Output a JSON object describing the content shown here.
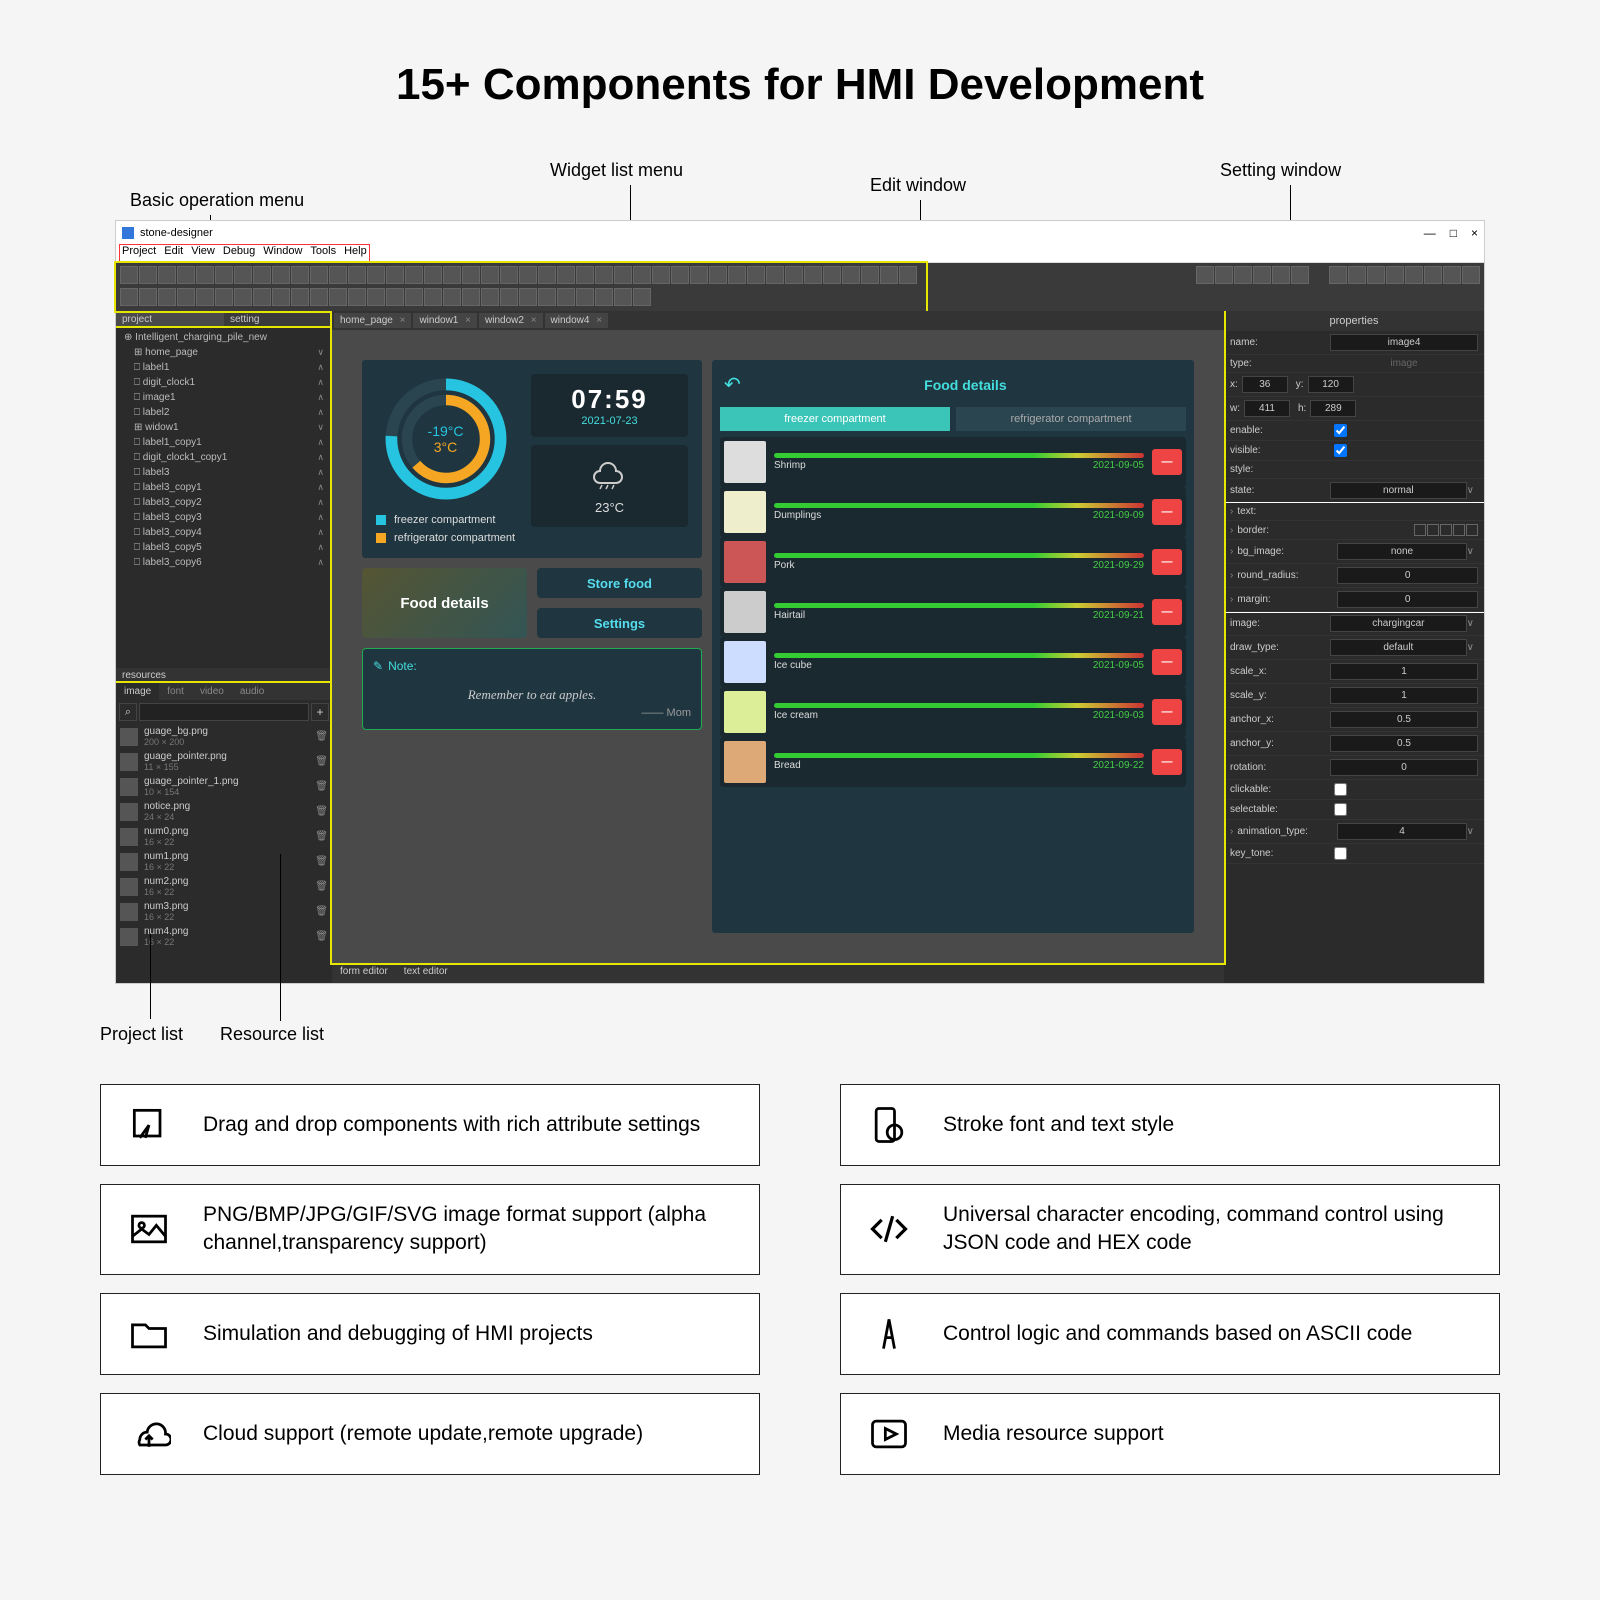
{
  "page_title": "15+ Components for HMI Development",
  "annotations": {
    "basic_menu": "Basic operation menu",
    "widget_menu": "Widget list menu",
    "edit_window": "Edit window",
    "setting_window": "Setting window",
    "project_list": "Project list",
    "resource_list": "Resource list"
  },
  "app": {
    "title": "stone-designer",
    "menus": [
      "Project",
      "Edit",
      "View",
      "Debug",
      "Window",
      "Tools",
      "Help"
    ],
    "project_tabs": {
      "a": "project",
      "b": "setting"
    },
    "project_root": "Intelligent_charging_pile_new",
    "tree": [
      {
        "name": "home_page",
        "kind": "win"
      },
      {
        "name": "label1",
        "kind": "item"
      },
      {
        "name": "digit_clock1",
        "kind": "item"
      },
      {
        "name": "image1",
        "kind": "item"
      },
      {
        "name": "label2",
        "kind": "item"
      },
      {
        "name": "widow1",
        "kind": "win"
      },
      {
        "name": "label1_copy1",
        "kind": "item"
      },
      {
        "name": "digit_clock1_copy1",
        "kind": "item"
      },
      {
        "name": "label3",
        "kind": "item"
      },
      {
        "name": "label3_copy1",
        "kind": "item"
      },
      {
        "name": "label3_copy2",
        "kind": "item"
      },
      {
        "name": "label3_copy3",
        "kind": "item"
      },
      {
        "name": "label3_copy4",
        "kind": "item"
      },
      {
        "name": "label3_copy5",
        "kind": "item"
      },
      {
        "name": "label3_copy6",
        "kind": "item"
      }
    ],
    "res_label": "resources",
    "res_tabs": [
      "image",
      "font",
      "video",
      "audio"
    ],
    "resources": [
      {
        "name": "guage_bg.png",
        "dim": "200 × 200"
      },
      {
        "name": "guage_pointer.png",
        "dim": "11 × 155"
      },
      {
        "name": "guage_pointer_1.png",
        "dim": "10 × 154"
      },
      {
        "name": "notice.png",
        "dim": "24 × 24"
      },
      {
        "name": "num0.png",
        "dim": "16 × 22"
      },
      {
        "name": "num1.png",
        "dim": "16 × 22"
      },
      {
        "name": "num2.png",
        "dim": "16 × 22"
      },
      {
        "name": "num3.png",
        "dim": "16 × 22"
      },
      {
        "name": "num4.png",
        "dim": "16 × 22"
      }
    ],
    "tabs": [
      "home_page",
      "window1",
      "window2",
      "window4"
    ],
    "bottom_tabs": [
      "form editor",
      "text editor"
    ]
  },
  "hmi": {
    "temp1": "-19°C",
    "temp2": "3°C",
    "gauge_colors": {
      "outer": "#26c4e0",
      "inner": "#f5a623"
    },
    "clock_time": "07:59",
    "clock_date": "2021-07-23",
    "weather_temp": "23°C",
    "legend1": "freezer compartment",
    "legend2": "refrigerator compartment",
    "btn_food_details": "Food details",
    "btn_store_food": "Store food",
    "btn_settings": "Settings",
    "note_label": "Note:",
    "note_text": "Remember to eat apples.",
    "note_sig": "—— Mom",
    "right_title": "Food details",
    "r_tab1": "freezer compartment",
    "r_tab2": "refrigerator compartment",
    "foods": [
      {
        "name": "Shrimp",
        "date": "2021-09-05",
        "color": "#ddd"
      },
      {
        "name": "Dumplings",
        "date": "2021-09-09",
        "color": "#eec"
      },
      {
        "name": "Pork",
        "date": "2021-09-29",
        "color": "#c55"
      },
      {
        "name": "Hairtail",
        "date": "2021-09-21",
        "color": "#ccc"
      },
      {
        "name": "Ice cube",
        "date": "2021-09-05",
        "color": "#cdf"
      },
      {
        "name": "Ice cream",
        "date": "2021-09-03",
        "color": "#de9"
      },
      {
        "name": "Bread",
        "date": "2021-09-22",
        "color": "#da7"
      }
    ]
  },
  "props": {
    "header": "properties",
    "name": {
      "label": "name:",
      "val": "image4"
    },
    "type": {
      "label": "type:",
      "val": "image"
    },
    "x": {
      "label": "x:",
      "val": "36"
    },
    "y": {
      "label": "y:",
      "val": "120"
    },
    "w": {
      "label": "w:",
      "val": "411"
    },
    "h": {
      "label": "h:",
      "val": "289"
    },
    "enable": "enable:",
    "visible": "visible:",
    "style": "style:",
    "state": {
      "label": "state:",
      "val": "normal"
    },
    "text": "text:",
    "border": "border:",
    "bg_image": {
      "label": "bg_image:",
      "val": "none"
    },
    "round_radius": {
      "label": "round_radius:",
      "val": "0"
    },
    "margin": {
      "label": "margin:",
      "val": "0"
    },
    "image": {
      "label": "image:",
      "val": "chargingcar"
    },
    "draw_type": {
      "label": "draw_type:",
      "val": "default"
    },
    "scale_x": {
      "label": "scale_x:",
      "val": "1"
    },
    "scale_y": {
      "label": "scale_y:",
      "val": "1"
    },
    "anchor_x": {
      "label": "anchor_x:",
      "val": "0.5"
    },
    "anchor_y": {
      "label": "anchor_y:",
      "val": "0.5"
    },
    "rotation": {
      "label": "rotation:",
      "val": "0"
    },
    "clickable": "clickable:",
    "selectable": "selectable:",
    "animation_type": {
      "label": "animation_type:",
      "val": "4"
    },
    "key_tone": "key_tone:"
  },
  "features": [
    {
      "text": "Drag and drop components with rich attribute settings",
      "icon": "cursor"
    },
    {
      "text": "Stroke font and text style",
      "icon": "font"
    },
    {
      "text": "PNG/BMP/JPG/GIF/SVG image format support (alpha channel,transparency support)",
      "icon": "image"
    },
    {
      "text": "Universal character encoding, command control using JSON code and HEX code",
      "icon": "code"
    },
    {
      "text": "Simulation and debugging of HMI projects",
      "icon": "folder"
    },
    {
      "text": "Control logic and commands based on ASCII code",
      "icon": "ascii"
    },
    {
      "text": "Cloud support (remote update,remote upgrade)",
      "icon": "cloud"
    },
    {
      "text": "Media resource support",
      "icon": "play"
    }
  ]
}
